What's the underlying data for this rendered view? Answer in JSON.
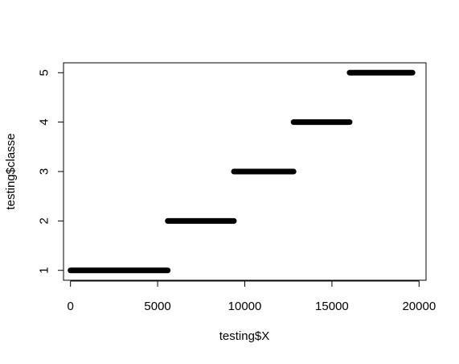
{
  "chart_data": {
    "type": "scatter",
    "title": "",
    "xlabel": "testing$X",
    "ylabel": "testing$classe",
    "xlim": [
      -400,
      20400
    ],
    "ylim": [
      0.8,
      5.2
    ],
    "x_ticks": [
      0,
      5000,
      10000,
      15000,
      20000
    ],
    "y_ticks": [
      1,
      2,
      3,
      4,
      5
    ],
    "x_tick_labels": [
      "0",
      "5000",
      "10000",
      "15000",
      "20000"
    ],
    "y_tick_labels": [
      "1",
      "2",
      "3",
      "4",
      "5"
    ],
    "grid": false,
    "legend": "none",
    "point_color": "#000000",
    "series": [
      {
        "segments": [
          {
            "class": 1,
            "x_min": 1,
            "x_max": 5580
          },
          {
            "class": 2,
            "x_min": 5581,
            "x_max": 9377
          },
          {
            "class": 3,
            "x_min": 9378,
            "x_max": 12799
          },
          {
            "class": 4,
            "x_min": 12800,
            "x_max": 16015
          },
          {
            "class": 5,
            "x_min": 16016,
            "x_max": 19622
          }
        ]
      }
    ]
  }
}
